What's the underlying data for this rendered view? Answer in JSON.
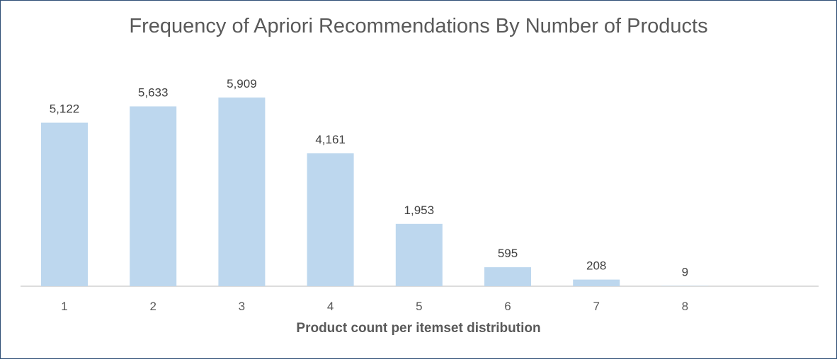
{
  "chart_data": {
    "type": "bar",
    "title": "Frequency of Apriori Recommendations By Number of Products",
    "xlabel": "Product count per itemset distribution",
    "ylabel": "",
    "categories": [
      "1",
      "2",
      "3",
      "4",
      "5",
      "6",
      "7",
      "8"
    ],
    "values": [
      5122,
      5633,
      5909,
      4161,
      1953,
      595,
      208,
      9
    ],
    "data_labels": [
      "5,122",
      "5,633",
      "5,909",
      "4,161",
      "1,953",
      "595",
      "208",
      "9"
    ],
    "ylim": [
      0,
      5909
    ],
    "grid": false,
    "legend": "none",
    "bar_color": "#bdd7ee"
  }
}
